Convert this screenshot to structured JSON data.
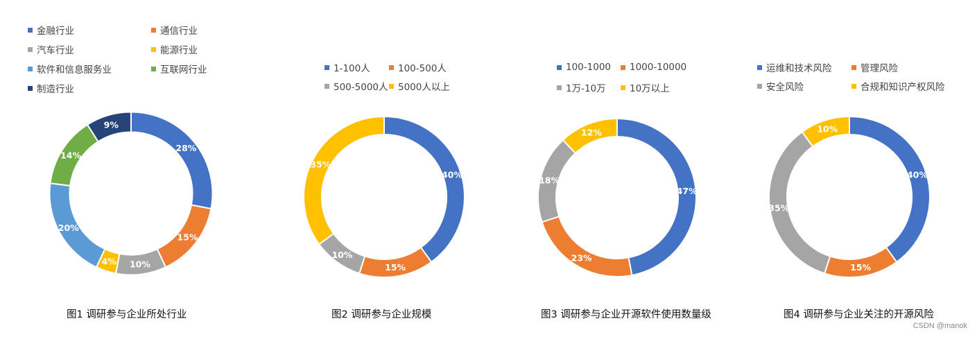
{
  "chart_data": [
    {
      "type": "pie",
      "title": "图1 调研参与企业所处行业",
      "categories": [
        "金融行业",
        "通信行业",
        "汽车行业",
        "能源行业",
        "软件和信息服务业",
        "互联网行业",
        "制造行业"
      ],
      "values": [
        28,
        15,
        10,
        4,
        20,
        14,
        9
      ],
      "value_labels": [
        "28%",
        "15%",
        "10%",
        "4%",
        "20%",
        "14%",
        "9%"
      ],
      "colors": [
        "#4472C4",
        "#ED7D31",
        "#A5A5A5",
        "#FFC000",
        "#5B9BD5",
        "#70AD47",
        "#264478"
      ],
      "legend_position": "top"
    },
    {
      "type": "pie",
      "title": "图2 调研参与企业规模",
      "categories": [
        "1-100人",
        "100-500人",
        "500-5000人",
        "5000人以上"
      ],
      "values": [
        40,
        15,
        10,
        35
      ],
      "value_labels": [
        "40%",
        "15%",
        "10%",
        "35%"
      ],
      "colors": [
        "#4472C4",
        "#ED7D31",
        "#A5A5A5",
        "#FFC000"
      ],
      "legend_position": "top"
    },
    {
      "type": "pie",
      "title": "图3 调研参与企业开源软件使用数量级",
      "categories": [
        "100-1000",
        "1000-10000",
        "1万-10万",
        "10万以上"
      ],
      "values": [
        47,
        23,
        18,
        12
      ],
      "value_labels": [
        "47%",
        "23%",
        "18%",
        "12%"
      ],
      "colors": [
        "#4472C4",
        "#ED7D31",
        "#A5A5A5",
        "#FFC000"
      ],
      "legend_position": "top"
    },
    {
      "type": "pie",
      "title": "图4 调研参与企业关注的开源风险",
      "categories": [
        "运维和技术风险",
        "管理风险",
        "安全风险",
        "合规和知识产权风险"
      ],
      "values": [
        40,
        15,
        35,
        10
      ],
      "value_labels": [
        "40%",
        "15%",
        "35%",
        "10%"
      ],
      "colors": [
        "#4472C4",
        "#ED7D31",
        "#A5A5A5",
        "#FFC000"
      ],
      "legend_position": "top"
    }
  ],
  "watermark": "CSDN @manok"
}
